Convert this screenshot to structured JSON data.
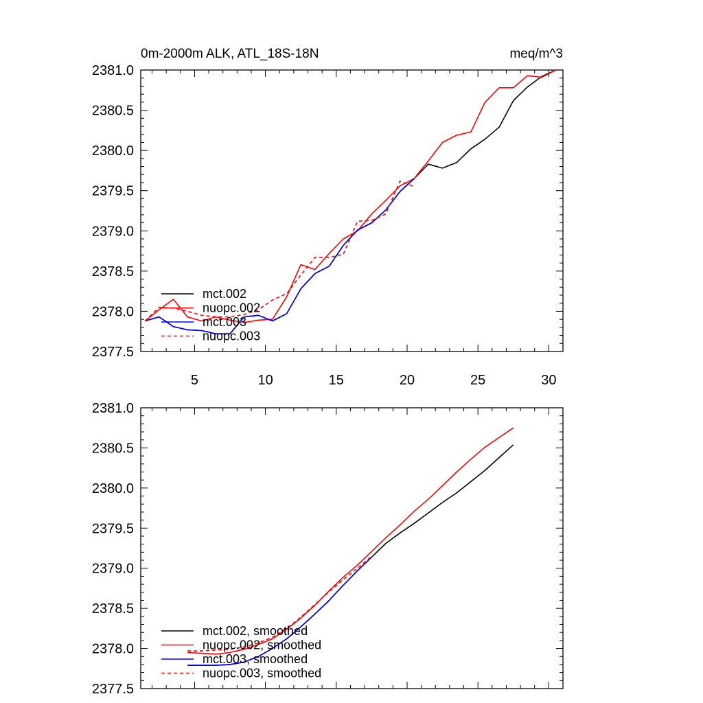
{
  "chart_data": [
    {
      "type": "line",
      "title": "0m-2000m ALK, ATL_18S-18N",
      "units": "meq/m^3",
      "xlabel": "",
      "ylabel": "",
      "xlim": [
        1.2,
        31
      ],
      "ylim": [
        2377.5,
        2381.0
      ],
      "xticks": [
        "5",
        "10",
        "15",
        "20",
        "25",
        "30"
      ],
      "yticks": [
        "2381.0",
        "2380.5",
        "2380.0",
        "2379.5",
        "2379.0",
        "2378.5",
        "2378.0",
        "2377.5"
      ],
      "legend_position": "bottom-left",
      "series": [
        {
          "name": "mct.002",
          "color": "#000000",
          "dash": "solid",
          "x": [
            1.5,
            2.5,
            3.5,
            4.5,
            5.5,
            6.5,
            7.5,
            8.5,
            9.5,
            10.5,
            11.5,
            12.5,
            13.5,
            14.5,
            15.5,
            16.5,
            17.5,
            18.5,
            19.5,
            20.5,
            21.5,
            22.5,
            23.5,
            24.5,
            25.5,
            26.5,
            27.5,
            28.5,
            29.5,
            30.5
          ],
          "y": [
            2377.88,
            2377.93,
            2377.81,
            2377.77,
            2377.76,
            2377.72,
            2377.72,
            2377.93,
            2377.95,
            2377.88,
            2377.97,
            2378.28,
            2378.47,
            2378.56,
            2378.82,
            2379.01,
            2379.1,
            2379.26,
            2379.49,
            2379.65,
            2379.83,
            2379.78,
            2379.85,
            2380.02,
            2380.14,
            2380.29,
            2380.62,
            2380.79,
            2380.92,
            2381.0
          ]
        },
        {
          "name": "nuopc.002",
          "color": "#ff0000",
          "dash": "solid",
          "x": [
            1.5,
            2.5,
            3.5,
            4.5,
            5.5,
            6.5,
            7.5,
            8.5,
            9.5,
            10.5,
            11.5,
            12.5,
            13.5,
            14.5,
            15.5,
            16.5,
            17.5,
            18.5,
            19.5,
            20.5,
            21.5,
            22.5,
            23.5,
            24.5,
            25.5,
            26.5,
            27.5,
            28.5,
            29.5,
            30.5
          ],
          "y": [
            2377.88,
            2378.02,
            2378.15,
            2377.93,
            2377.88,
            2377.93,
            2377.89,
            2377.86,
            2377.89,
            2377.9,
            2378.18,
            2378.58,
            2378.52,
            2378.72,
            2378.9,
            2379.0,
            2379.21,
            2379.38,
            2379.56,
            2379.65,
            2379.87,
            2380.1,
            2380.19,
            2380.23,
            2380.6,
            2380.78,
            2380.78,
            2380.93,
            2380.91,
            2381.0
          ]
        },
        {
          "name": "mct.003",
          "color": "#0000ff",
          "dash": "solid",
          "x": [
            1.5,
            2.5,
            3.5,
            4.5,
            5.5,
            6.5,
            7.5,
            8.5,
            9.5,
            10.5,
            11.5,
            12.5,
            13.5,
            14.5,
            15.5,
            16.5,
            17.5,
            18.5,
            19.5,
            20.5
          ],
          "y": [
            2377.88,
            2377.93,
            2377.81,
            2377.77,
            2377.76,
            2377.72,
            2377.72,
            2377.93,
            2377.95,
            2377.88,
            2377.97,
            2378.28,
            2378.47,
            2378.56,
            2378.82,
            2379.01,
            2379.1,
            2379.26,
            2379.49,
            2379.65
          ]
        },
        {
          "name": "nuopc.003",
          "color": "#ff0000",
          "dash": "dashed",
          "x": [
            1.5,
            2.5,
            3.5,
            4.5,
            5.5,
            6.5,
            7.5,
            8.5,
            9.5,
            10.5,
            11.5,
            12.5,
            13.5,
            14.5,
            15.5,
            16.5,
            17.5,
            18.5,
            19.5,
            20.5
          ],
          "y": [
            2377.88,
            2378.05,
            2378.04,
            2378.0,
            2377.95,
            2377.93,
            2377.93,
            2377.96,
            2378.02,
            2378.14,
            2378.22,
            2378.45,
            2378.67,
            2378.67,
            2378.71,
            2379.12,
            2379.13,
            2379.21,
            2379.62,
            2379.55
          ]
        }
      ]
    },
    {
      "type": "line",
      "title": "",
      "units": "",
      "xlabel": "",
      "ylabel": "",
      "xlim": [
        1.2,
        31
      ],
      "ylim": [
        2377.5,
        2381.0
      ],
      "xticks": [],
      "yticks": [
        "2381.0",
        "2380.5",
        "2380.0",
        "2379.5",
        "2379.0",
        "2378.5",
        "2378.0",
        "2377.5"
      ],
      "legend_position": "bottom-left",
      "series": [
        {
          "name": "mct.002, smoothed",
          "color": "#000000",
          "dash": "solid",
          "x": [
            4.5,
            5.5,
            6.5,
            7.5,
            8.5,
            9.5,
            10.5,
            11.5,
            12.5,
            13.5,
            14.5,
            15.5,
            16.5,
            17.5,
            18.5,
            19.5,
            20.5,
            21.5,
            22.5,
            23.5,
            24.5,
            25.5,
            26.5,
            27.5
          ],
          "y": [
            2377.79,
            2377.79,
            2377.79,
            2377.8,
            2377.83,
            2377.9,
            2378.0,
            2378.12,
            2378.27,
            2378.43,
            2378.6,
            2378.79,
            2378.97,
            2379.14,
            2379.31,
            2379.44,
            2379.56,
            2379.69,
            2379.82,
            2379.94,
            2380.08,
            2380.22,
            2380.38,
            2380.54
          ]
        },
        {
          "name": "nuopc.002, smoothed",
          "color": "#ff0000",
          "dash": "solid",
          "x": [
            4.5,
            5.5,
            6.5,
            7.5,
            8.5,
            9.5,
            10.5,
            11.5,
            12.5,
            13.5,
            14.5,
            15.5,
            16.5,
            17.5,
            18.5,
            19.5,
            20.5,
            21.5,
            22.5,
            23.5,
            24.5,
            25.5,
            26.5,
            27.5
          ],
          "y": [
            2377.95,
            2377.94,
            2377.93,
            2377.95,
            2377.99,
            2378.05,
            2378.12,
            2378.24,
            2378.38,
            2378.54,
            2378.72,
            2378.89,
            2379.04,
            2379.21,
            2379.38,
            2379.54,
            2379.71,
            2379.86,
            2380.03,
            2380.2,
            2380.36,
            2380.51,
            2380.63,
            2380.75
          ]
        },
        {
          "name": "mct.003, smoothed",
          "color": "#0000ff",
          "dash": "solid",
          "x": [
            4.5,
            5.5,
            6.5,
            7.5,
            8.5,
            9.5,
            10.5,
            11.5,
            12.5,
            13.5,
            14.5,
            15.5,
            16.5,
            17.5
          ],
          "y": [
            2377.79,
            2377.79,
            2377.79,
            2377.8,
            2377.83,
            2377.9,
            2378.0,
            2378.12,
            2378.27,
            2378.43,
            2378.6,
            2378.79,
            2378.97,
            2379.14
          ]
        },
        {
          "name": "nuopc.003, smoothed",
          "color": "#ff0000",
          "dash": "dashed",
          "x": [
            4.5,
            5.5,
            6.5,
            7.5,
            8.5,
            9.5,
            10.5,
            11.5,
            12.5,
            13.5,
            14.5,
            15.5,
            16.5,
            17.5
          ],
          "y": [
            2377.97,
            2377.97,
            2377.98,
            2377.99,
            2378.02,
            2378.07,
            2378.14,
            2378.25,
            2378.39,
            2378.55,
            2378.71,
            2378.86,
            2379.0,
            2379.15
          ]
        }
      ]
    }
  ]
}
